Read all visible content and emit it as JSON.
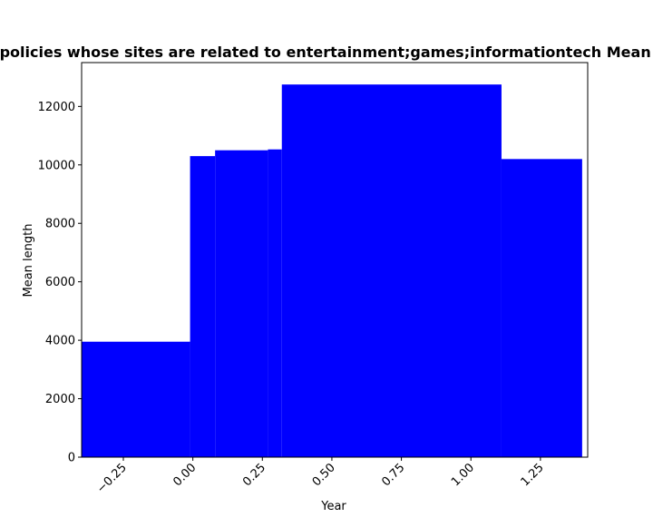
{
  "chart_data": {
    "type": "bar",
    "title": "Mean length of privacy policies whose sites are related to entertainment;games;informationtech Mean length in privacy policies",
    "xlabel": "Year",
    "ylabel": "Mean length",
    "bar_color": "#0000ff",
    "xlim": [
      -0.4,
      1.42
    ],
    "ylim": [
      0,
      13500
    ],
    "bars": [
      {
        "x0": -0.4,
        "x1": -0.01,
        "value": 3950
      },
      {
        "x0": -0.01,
        "x1": 0.08,
        "value": 10300
      },
      {
        "x0": 0.08,
        "x1": 0.27,
        "value": 10500
      },
      {
        "x0": 0.27,
        "x1": 0.32,
        "value": 10530
      },
      {
        "x0": 0.32,
        "x1": 1.11,
        "value": 12750
      },
      {
        "x0": 1.11,
        "x1": 1.4,
        "value": 10200
      }
    ],
    "x_ticks": [
      -0.25,
      0.0,
      0.25,
      0.5,
      0.75,
      1.0,
      1.25
    ],
    "x_tick_labels": [
      "−0.25",
      "0.00",
      "0.25",
      "0.50",
      "0.75",
      "1.00",
      "1.25"
    ],
    "y_ticks": [
      0,
      2000,
      4000,
      6000,
      8000,
      10000,
      12000
    ],
    "y_tick_labels": [
      "0",
      "2000",
      "4000",
      "6000",
      "8000",
      "10000",
      "12000"
    ],
    "grid": false,
    "legend": "none"
  }
}
